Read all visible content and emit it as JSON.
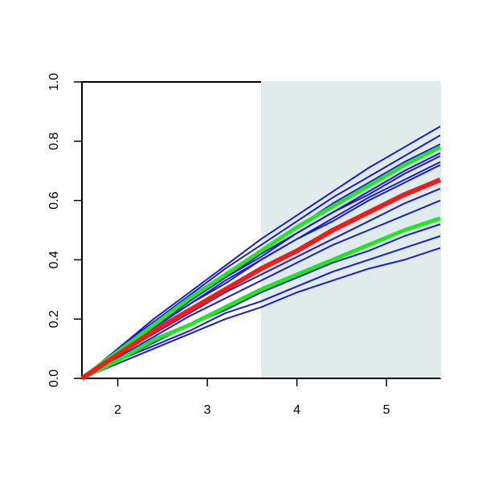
{
  "chart_data": {
    "type": "line",
    "x": [
      1.6,
      2.0,
      2.4,
      2.8,
      3.2,
      3.6,
      4.0,
      4.4,
      4.8,
      5.2,
      5.6
    ],
    "xlim": [
      1.6,
      5.6
    ],
    "ylim": [
      0,
      1
    ],
    "xticks": [
      2,
      3,
      4,
      5
    ],
    "yticks": [
      {
        "value": 0,
        "label": "0.0"
      },
      0.2,
      0.4,
      0.6,
      0.8,
      {
        "value": 1,
        "label": "1.0"
      }
    ],
    "shaded_region": {
      "x": [
        3.6,
        5.6
      ],
      "color": "#e0ecec"
    },
    "series": [
      {
        "color": "#1a1ad6",
        "values": [
          0,
          0.1,
          0.2,
          0.29,
          0.38,
          0.47,
          0.55,
          0.63,
          0.71,
          0.78,
          0.85
        ]
      },
      {
        "color": "#1a1ad6",
        "values": [
          0,
          0.1,
          0.19,
          0.28,
          0.37,
          0.45,
          0.53,
          0.61,
          0.68,
          0.75,
          0.82
        ]
      },
      {
        "color": "#1a1ad6",
        "values": [
          0,
          0.09,
          0.18,
          0.27,
          0.35,
          0.43,
          0.51,
          0.59,
          0.66,
          0.73,
          0.79
        ]
      },
      {
        "color": "#1a1ad6",
        "values": [
          0,
          0.09,
          0.18,
          0.26,
          0.34,
          0.42,
          0.49,
          0.56,
          0.63,
          0.7,
          0.76
        ]
      },
      {
        "color": "#1a1ad6",
        "values": [
          0,
          0.09,
          0.17,
          0.26,
          0.34,
          0.41,
          0.49,
          0.56,
          0.62,
          0.69,
          0.75
        ]
      },
      {
        "color": "#1a1ad6",
        "values": [
          0,
          0.09,
          0.17,
          0.25,
          0.33,
          0.4,
          0.47,
          0.54,
          0.61,
          0.67,
          0.73
        ]
      },
      {
        "color": "#1a1ad6",
        "values": [
          0,
          0.08,
          0.17,
          0.25,
          0.32,
          0.4,
          0.47,
          0.53,
          0.6,
          0.66,
          0.72
        ]
      },
      {
        "color": "#1a1ad6",
        "values": [
          0,
          0.08,
          0.15,
          0.22,
          0.29,
          0.35,
          0.41,
          0.47,
          0.53,
          0.59,
          0.64
        ]
      },
      {
        "color": "#1a1ad6",
        "values": [
          0,
          0.07,
          0.14,
          0.21,
          0.27,
          0.33,
          0.39,
          0.45,
          0.5,
          0.55,
          0.6
        ]
      },
      {
        "color": "#1a1ad6",
        "values": [
          0,
          0.06,
          0.12,
          0.18,
          0.23,
          0.29,
          0.34,
          0.39,
          0.43,
          0.48,
          0.52
        ]
      },
      {
        "color": "#1a1ad6",
        "values": [
          0,
          0.06,
          0.11,
          0.16,
          0.22,
          0.26,
          0.31,
          0.36,
          0.4,
          0.44,
          0.48
        ]
      },
      {
        "color": "#1a1ad6",
        "values": [
          0,
          0.05,
          0.1,
          0.15,
          0.2,
          0.24,
          0.29,
          0.33,
          0.37,
          0.4,
          0.44
        ]
      },
      {
        "color": "#22e622",
        "width": 5,
        "values": [
          0,
          0.09,
          0.18,
          0.27,
          0.35,
          0.43,
          0.51,
          0.58,
          0.65,
          0.72,
          0.78
        ]
      },
      {
        "color": "#22e622",
        "width": 5,
        "values": [
          0,
          0.06,
          0.13,
          0.18,
          0.24,
          0.3,
          0.35,
          0.4,
          0.45,
          0.5,
          0.54
        ]
      },
      {
        "color": "#f01c1c",
        "width": 6,
        "values": [
          0,
          0.08,
          0.16,
          0.23,
          0.3,
          0.37,
          0.43,
          0.5,
          0.56,
          0.62,
          0.67
        ]
      }
    ]
  }
}
